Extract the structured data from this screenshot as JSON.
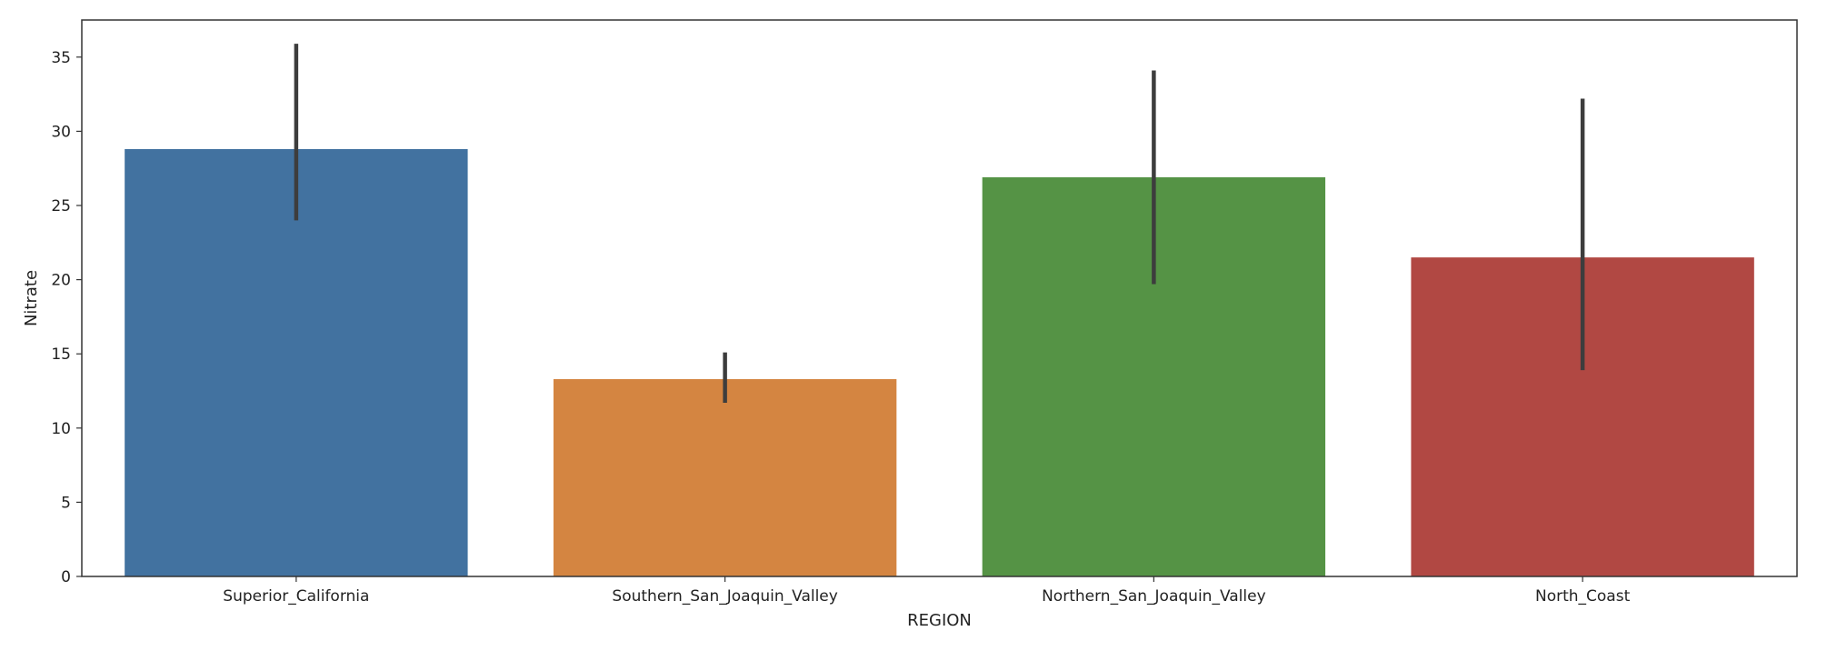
{
  "chart_data": {
    "type": "bar",
    "title": "",
    "xlabel": "REGION",
    "ylabel": "Nitrate",
    "categories": [
      "Superior_California",
      "Southern_San_Joaquin_Valley",
      "Northern_San_Joaquin_Valley",
      "North_Coast"
    ],
    "values": [
      28.8,
      13.3,
      26.9,
      21.5
    ],
    "error_low": [
      24.0,
      11.7,
      19.7,
      13.9
    ],
    "error_high": [
      35.9,
      15.1,
      34.1,
      32.2
    ],
    "colors": [
      "#4272a0",
      "#d48541",
      "#559345",
      "#b14843"
    ],
    "error_color": "#3d3d3d",
    "ylim": [
      0,
      37.5
    ],
    "yticks": [
      0,
      5,
      10,
      15,
      20,
      25,
      30,
      35
    ],
    "grid": false
  }
}
